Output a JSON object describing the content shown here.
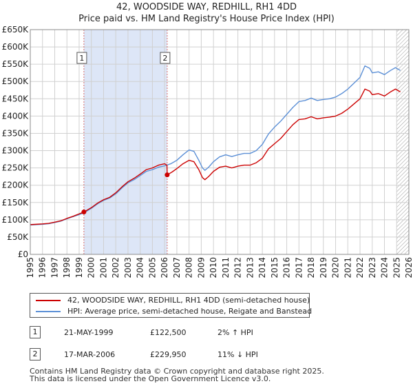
{
  "chart_data": {
    "type": "line",
    "title": "42, WOODSIDE WAY, REDHILL, RH1 4DD",
    "subtitle": "Price paid vs. HM Land Registry's House Price Index (HPI)",
    "xlabel": "",
    "ylabel": "",
    "xlim": [
      1995,
      2026
    ],
    "ylim": [
      0,
      650000
    ],
    "x_ticks": [
      "1995",
      "1996",
      "1997",
      "1998",
      "1999",
      "2000",
      "2001",
      "2002",
      "2003",
      "2004",
      "2005",
      "2006",
      "2007",
      "2008",
      "2009",
      "2010",
      "2011",
      "2012",
      "2013",
      "2014",
      "2015",
      "2016",
      "2017",
      "2018",
      "2019",
      "2020",
      "2021",
      "2022",
      "2023",
      "2024",
      "2025",
      "2026"
    ],
    "y_ticks": [
      {
        "value": 0,
        "label": "£0"
      },
      {
        "value": 50000,
        "label": "£50K"
      },
      {
        "value": 100000,
        "label": "£100K"
      },
      {
        "value": 150000,
        "label": "£150K"
      },
      {
        "value": 200000,
        "label": "£200K"
      },
      {
        "value": 250000,
        "label": "£250K"
      },
      {
        "value": 300000,
        "label": "£300K"
      },
      {
        "value": 350000,
        "label": "£350K"
      },
      {
        "value": 400000,
        "label": "£400K"
      },
      {
        "value": 450000,
        "label": "£450K"
      },
      {
        "value": 500000,
        "label": "£500K"
      },
      {
        "value": 550000,
        "label": "£550K"
      },
      {
        "value": 600000,
        "label": "£600K"
      },
      {
        "value": 650000,
        "label": "£650K"
      }
    ],
    "grid": true,
    "shaded_ranges": [
      {
        "from": 1999.39,
        "to": 2006.21,
        "color": "#dde6f7"
      }
    ],
    "forecast_hatch": {
      "from": 2025.0,
      "to": 2026
    },
    "series": [
      {
        "name": "42, WOODSIDE WAY, REDHILL, RH1 4DD (semi-detached house)",
        "color": "#cc0000",
        "points": [
          [
            1995.0,
            86000
          ],
          [
            1995.5,
            87000
          ],
          [
            1996.0,
            88000
          ],
          [
            1996.5,
            89500
          ],
          [
            1997.0,
            93000
          ],
          [
            1997.5,
            97000
          ],
          [
            1998.0,
            104000
          ],
          [
            1998.5,
            110000
          ],
          [
            1999.0,
            117000
          ],
          [
            1999.39,
            122500
          ],
          [
            2000.0,
            135000
          ],
          [
            2000.5,
            148000
          ],
          [
            2001.0,
            158000
          ],
          [
            2001.5,
            165000
          ],
          [
            2002.0,
            178000
          ],
          [
            2002.5,
            195000
          ],
          [
            2003.0,
            210000
          ],
          [
            2003.5,
            220000
          ],
          [
            2004.0,
            232000
          ],
          [
            2004.5,
            245000
          ],
          [
            2005.0,
            250000
          ],
          [
            2005.5,
            258000
          ],
          [
            2006.0,
            262000
          ],
          [
            2006.19,
            258000
          ],
          [
            2006.21,
            229950
          ],
          [
            2006.6,
            238000
          ],
          [
            2007.0,
            248000
          ],
          [
            2007.5,
            262000
          ],
          [
            2008.0,
            272000
          ],
          [
            2008.4,
            268000
          ],
          [
            2008.8,
            245000
          ],
          [
            2009.1,
            222000
          ],
          [
            2009.3,
            216000
          ],
          [
            2009.6,
            225000
          ],
          [
            2010.0,
            240000
          ],
          [
            2010.5,
            252000
          ],
          [
            2011.0,
            255000
          ],
          [
            2011.5,
            250000
          ],
          [
            2012.0,
            255000
          ],
          [
            2012.5,
            258000
          ],
          [
            2013.0,
            258000
          ],
          [
            2013.5,
            265000
          ],
          [
            2014.0,
            278000
          ],
          [
            2014.5,
            305000
          ],
          [
            2015.0,
            320000
          ],
          [
            2015.5,
            335000
          ],
          [
            2016.0,
            355000
          ],
          [
            2016.5,
            375000
          ],
          [
            2017.0,
            390000
          ],
          [
            2017.5,
            392000
          ],
          [
            2018.0,
            398000
          ],
          [
            2018.5,
            392000
          ],
          [
            2019.0,
            395000
          ],
          [
            2019.5,
            397000
          ],
          [
            2020.0,
            400000
          ],
          [
            2020.5,
            408000
          ],
          [
            2021.0,
            420000
          ],
          [
            2021.5,
            435000
          ],
          [
            2022.0,
            450000
          ],
          [
            2022.4,
            478000
          ],
          [
            2022.8,
            472000
          ],
          [
            2023.0,
            462000
          ],
          [
            2023.5,
            465000
          ],
          [
            2024.0,
            458000
          ],
          [
            2024.5,
            470000
          ],
          [
            2024.9,
            478000
          ],
          [
            2025.3,
            470000
          ]
        ]
      },
      {
        "name": "HPI: Average price, semi-detached house, Reigate and Banstead",
        "color": "#5b8fd6",
        "points": [
          [
            1995.0,
            85000
          ],
          [
            1995.5,
            86000
          ],
          [
            1996.0,
            87000
          ],
          [
            1996.5,
            88500
          ],
          [
            1997.0,
            92000
          ],
          [
            1997.5,
            96000
          ],
          [
            1998.0,
            103000
          ],
          [
            1998.5,
            109000
          ],
          [
            1999.0,
            115000
          ],
          [
            1999.39,
            120000
          ],
          [
            2000.0,
            133000
          ],
          [
            2000.5,
            146000
          ],
          [
            2001.0,
            156000
          ],
          [
            2001.5,
            163000
          ],
          [
            2002.0,
            175000
          ],
          [
            2002.5,
            192000
          ],
          [
            2003.0,
            207000
          ],
          [
            2003.5,
            216000
          ],
          [
            2004.0,
            228000
          ],
          [
            2004.5,
            240000
          ],
          [
            2005.0,
            245000
          ],
          [
            2005.5,
            252000
          ],
          [
            2006.0,
            256000
          ],
          [
            2006.5,
            262000
          ],
          [
            2007.0,
            272000
          ],
          [
            2007.5,
            288000
          ],
          [
            2008.0,
            302000
          ],
          [
            2008.4,
            298000
          ],
          [
            2008.8,
            272000
          ],
          [
            2009.1,
            250000
          ],
          [
            2009.3,
            243000
          ],
          [
            2009.6,
            252000
          ],
          [
            2010.0,
            268000
          ],
          [
            2010.5,
            282000
          ],
          [
            2011.0,
            288000
          ],
          [
            2011.5,
            283000
          ],
          [
            2012.0,
            288000
          ],
          [
            2012.5,
            292000
          ],
          [
            2013.0,
            292000
          ],
          [
            2013.5,
            300000
          ],
          [
            2014.0,
            318000
          ],
          [
            2014.5,
            348000
          ],
          [
            2015.0,
            368000
          ],
          [
            2015.5,
            385000
          ],
          [
            2016.0,
            405000
          ],
          [
            2016.5,
            425000
          ],
          [
            2017.0,
            442000
          ],
          [
            2017.5,
            445000
          ],
          [
            2018.0,
            452000
          ],
          [
            2018.5,
            445000
          ],
          [
            2019.0,
            448000
          ],
          [
            2019.5,
            450000
          ],
          [
            2020.0,
            455000
          ],
          [
            2020.5,
            465000
          ],
          [
            2021.0,
            478000
          ],
          [
            2021.5,
            495000
          ],
          [
            2022.0,
            512000
          ],
          [
            2022.4,
            545000
          ],
          [
            2022.8,
            538000
          ],
          [
            2023.0,
            525000
          ],
          [
            2023.5,
            528000
          ],
          [
            2024.0,
            520000
          ],
          [
            2024.5,
            532000
          ],
          [
            2024.9,
            540000
          ],
          [
            2025.3,
            532000
          ]
        ]
      }
    ],
    "annotations": [
      {
        "label": "1",
        "x": 1999.39,
        "y": 122500
      },
      {
        "label": "2",
        "x": 2006.21,
        "y": 229950
      }
    ]
  },
  "legend": {
    "items": [
      {
        "label": "42, WOODSIDE WAY, REDHILL, RH1 4DD (semi-detached house)",
        "color": "#cc0000"
      },
      {
        "label": "HPI: Average price, semi-detached house, Reigate and Banstead",
        "color": "#5b8fd6"
      }
    ]
  },
  "transactions": [
    {
      "num": "1",
      "date": "21-MAY-1999",
      "price": "£122,500",
      "hpi": "2% ↑ HPI"
    },
    {
      "num": "2",
      "date": "17-MAR-2006",
      "price": "£229,950",
      "hpi": "11% ↓ HPI"
    }
  ],
  "footer": {
    "line1": "Contains HM Land Registry data © Crown copyright and database right 2025.",
    "line2": "This data is licensed under the Open Government Licence v3.0."
  }
}
